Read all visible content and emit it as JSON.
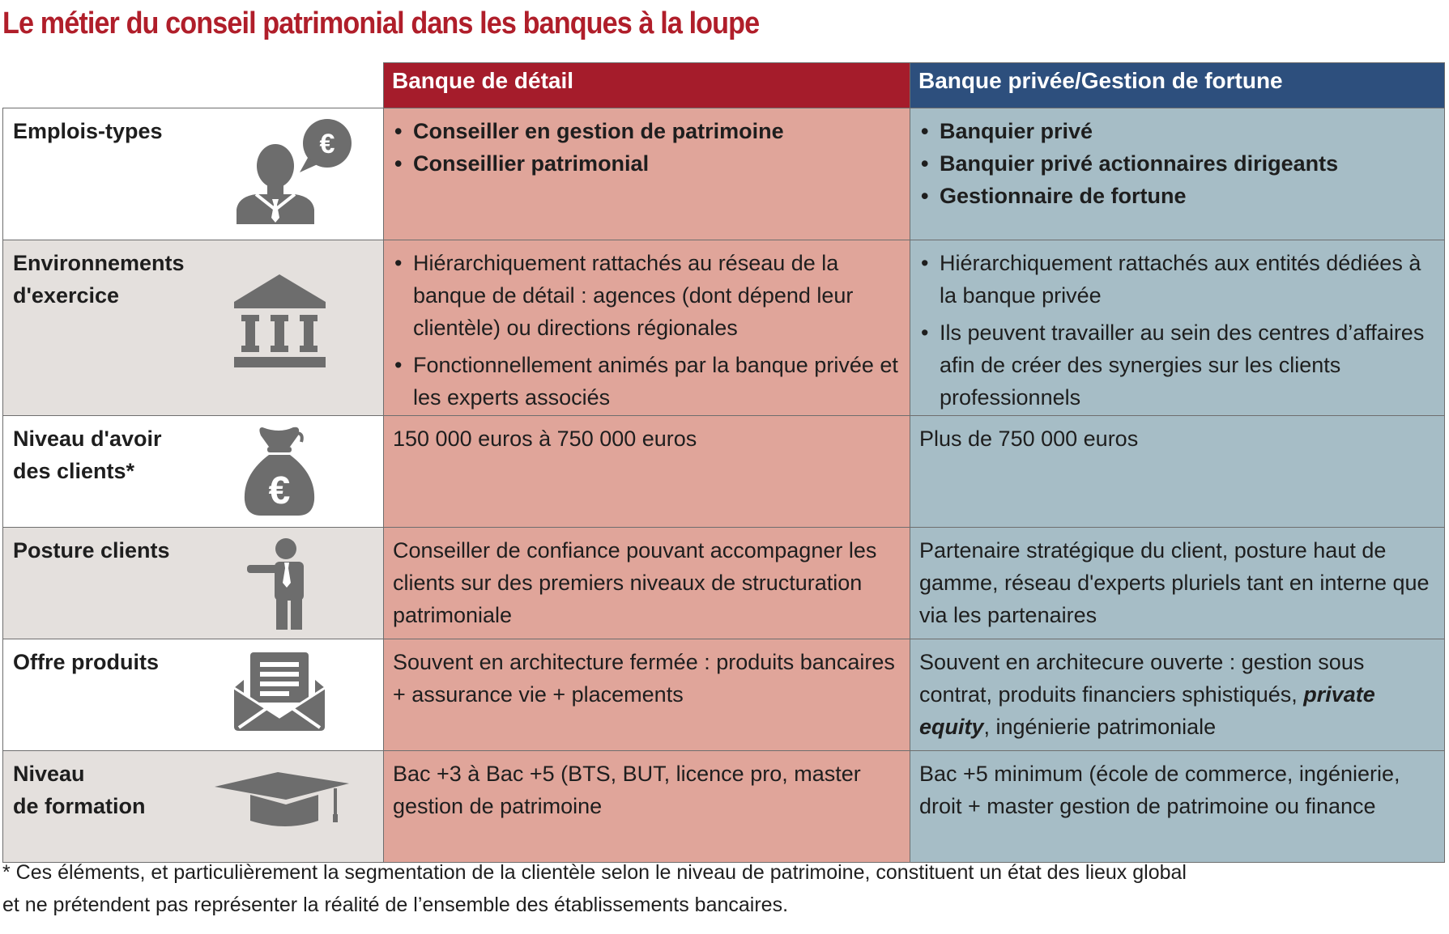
{
  "title": "Le métier du conseil patrimonial dans les banques à la loupe",
  "columns": {
    "retail": "Banque de détail",
    "private": "Banque privée/Gestion de fortune"
  },
  "rows": [
    {
      "label": "Emplois-types",
      "icon": "advisor-euro-icon",
      "retail": [
        "Conseiller en gestion de patrimoine",
        "Conseillier patrimonial"
      ],
      "private": [
        "Banquier privé",
        "Banquier privé actionnaires dirigeants",
        "Gestionnaire de fortune"
      ]
    },
    {
      "label": "Environnements\nd'exercice",
      "icon": "bank-building-icon",
      "retail": [
        "Hiérarchiquement rattachés au réseau de la banque de détail : agences (dont dépend leur clientèle) ou directions régionales",
        "Fonctionnellement animés par la banque privée et les experts associés"
      ],
      "private": [
        "Hiérarchiquement rattachés aux entités dédiées à la banque privée",
        "Ils peuvent travailler au sein des centres d’affaires afin de créer des synergies sur les clients professionnels"
      ]
    },
    {
      "label": "Niveau d'avoir\ndes clients*",
      "icon": "money-bag-euro-icon",
      "retail": "150 000 euros à 750 000 euros",
      "private": "Plus de 750 000 euros"
    },
    {
      "label": "Posture clients",
      "icon": "presenter-icon",
      "retail": "Conseiller de confiance pouvant accompagner les clients sur des premiers niveaux de structuration patrimoniale",
      "private": "Partenaire stratégique du client, posture haut de gamme, réseau d'experts pluriels tant en interne que via les partenaires"
    },
    {
      "label": "Offre produits",
      "icon": "envelope-document-icon",
      "retail": "Souvent en architecture fermée : produits bancaires + assurance vie + placements",
      "private_before": "Souvent en architecure ouverte : gestion sous contrat, produits financiers sphistiqués, ",
      "private_emph": "private equity",
      "private_after": ", ingénierie patrimoniale"
    },
    {
      "label": "Niveau\nde formation",
      "icon": "graduation-cap-icon",
      "retail": "Bac +3 à Bac +5 (BTS, BUT, licence pro, master gestion de patrimoine",
      "private": "Bac +5 minimum (école de commerce, ingénierie, droit + master gestion de patrimoine ou finance"
    }
  ],
  "footnote": "* Ces éléments, et particulièrement la segmentation de la clientèle selon le niveau de patrimoine, constituent un état des lieux global\net ne prétendent pas représenter la réalité de l’ensemble des établissements bancaires.",
  "colors": {
    "title": "#b01e2a",
    "retail_header": "#a51c2b",
    "private_header": "#2d4f7d",
    "retail_cell": "#e0a59a",
    "private_cell": "#a6bdc6",
    "label_cell": "#e4e0dd",
    "icon": "#6d6d6d"
  }
}
